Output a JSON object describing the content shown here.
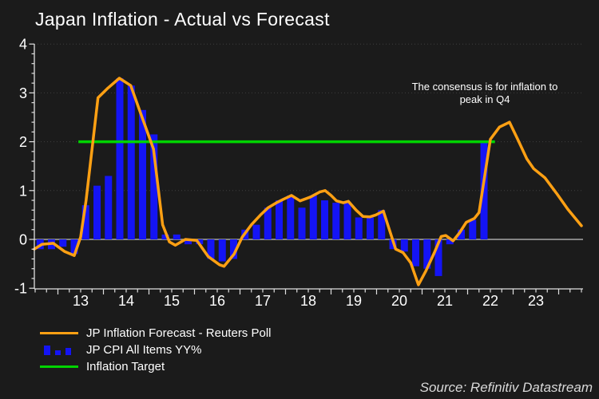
{
  "title": "Japan Inflation - Actual vs Forecast",
  "annotation": {
    "line1": "The consensus is for inflation to",
    "line2": "peak in Q4"
  },
  "source": "Source: Refinitiv Datastream",
  "legend": {
    "items": [
      {
        "label": "JP Inflation Forecast - Reuters Poll",
        "swatch": "line",
        "color": "#FFA013"
      },
      {
        "label": "JP CPI All Items YY%",
        "swatch": "bars",
        "color": "#1414F5"
      },
      {
        "label": "Inflation Target",
        "swatch": "line",
        "color": "#00D400"
      }
    ]
  },
  "colors": {
    "background": "#1b1b1b",
    "text": "#ffffff",
    "axis": "#e0e0e0",
    "gridline": "#3f3f3f",
    "zero_line": "#a8a8a8",
    "forecast_orange": "#FFA013",
    "cpi_blue": "#1414F5",
    "target_green": "#00D400",
    "source_text": "#d9d9d9"
  },
  "chart_data": {
    "type": "combo",
    "title": "Japan Inflation - Actual vs Forecast",
    "ylim": [
      -1,
      4
    ],
    "yticks": [
      -1,
      0,
      1,
      2,
      3,
      4
    ],
    "grid_y_dotted": [
      1,
      2,
      3,
      4
    ],
    "grid": "dotted horizontal at integers, solid gray zero line",
    "legend_position": "bottom-left",
    "x_year_labels": [
      "13",
      "14",
      "15",
      "16",
      "17",
      "18",
      "19",
      "20",
      "21",
      "22",
      "23"
    ],
    "x_range_years": [
      12.48,
      24.55
    ],
    "series": [
      {
        "name": "JP CPI All Items YY%",
        "type": "bar",
        "color": "#1414F5",
        "quarters": [
          "2012-Q3",
          "2012-Q4",
          "2013-Q1",
          "2013-Q2",
          "2013-Q3",
          "2013-Q4",
          "2014-Q1",
          "2014-Q2",
          "2014-Q3",
          "2014-Q4",
          "2015-Q1",
          "2015-Q2",
          "2015-Q3",
          "2015-Q4",
          "2016-Q1",
          "2016-Q2",
          "2016-Q3",
          "2016-Q4",
          "2017-Q1",
          "2017-Q2",
          "2017-Q3",
          "2017-Q4",
          "2018-Q1",
          "2018-Q2",
          "2018-Q3",
          "2018-Q4",
          "2019-Q1",
          "2019-Q2",
          "2019-Q3",
          "2019-Q4",
          "2020-Q1",
          "2020-Q2",
          "2020-Q3",
          "2020-Q4",
          "2021-Q1",
          "2021-Q2",
          "2021-Q3",
          "2021-Q4",
          "2022-Q1",
          "2022-Q2"
        ],
        "values": [
          -0.2,
          -0.2,
          -0.15,
          -0.3,
          0.7,
          1.1,
          1.3,
          3.3,
          3.15,
          2.65,
          2.15,
          0.1,
          0.1,
          -0.1,
          -0.1,
          -0.4,
          -0.45,
          -0.4,
          0.2,
          0.3,
          0.65,
          0.8,
          0.9,
          0.65,
          0.9,
          0.8,
          0.75,
          0.75,
          0.45,
          0.45,
          0.6,
          -0.2,
          -0.25,
          -0.55,
          -0.6,
          -0.75,
          -0.1,
          0.2,
          0.4,
          2.0
        ]
      },
      {
        "name": "JP Inflation Forecast - Reuters Poll",
        "type": "line",
        "color": "#FFA013",
        "points": [
          [
            12.48,
            -0.2
          ],
          [
            12.65,
            -0.1
          ],
          [
            12.9,
            -0.08
          ],
          [
            13.15,
            -0.25
          ],
          [
            13.36,
            -0.33
          ],
          [
            13.5,
            0.05
          ],
          [
            13.62,
            0.8
          ],
          [
            13.88,
            2.9
          ],
          [
            14.1,
            3.1
          ],
          [
            14.35,
            3.3
          ],
          [
            14.6,
            3.15
          ],
          [
            14.85,
            2.5
          ],
          [
            15.1,
            1.85
          ],
          [
            15.3,
            0.3
          ],
          [
            15.45,
            -0.05
          ],
          [
            15.58,
            -0.12
          ],
          [
            15.8,
            0.0
          ],
          [
            16.05,
            -0.02
          ],
          [
            16.3,
            -0.35
          ],
          [
            16.55,
            -0.52
          ],
          [
            16.65,
            -0.55
          ],
          [
            16.87,
            -0.3
          ],
          [
            17.05,
            0.05
          ],
          [
            17.25,
            0.3
          ],
          [
            17.45,
            0.5
          ],
          [
            17.62,
            0.65
          ],
          [
            17.8,
            0.75
          ],
          [
            17.95,
            0.82
          ],
          [
            18.13,
            0.9
          ],
          [
            18.32,
            0.79
          ],
          [
            18.55,
            0.87
          ],
          [
            18.75,
            0.97
          ],
          [
            18.87,
            1.0
          ],
          [
            19.0,
            0.9
          ],
          [
            19.12,
            0.79
          ],
          [
            19.27,
            0.75
          ],
          [
            19.38,
            0.78
          ],
          [
            19.55,
            0.6
          ],
          [
            19.7,
            0.47
          ],
          [
            19.85,
            0.46
          ],
          [
            19.98,
            0.5
          ],
          [
            20.15,
            0.58
          ],
          [
            20.42,
            -0.2
          ],
          [
            20.58,
            -0.27
          ],
          [
            20.75,
            -0.48
          ],
          [
            20.92,
            -0.93
          ],
          [
            21.08,
            -0.65
          ],
          [
            21.27,
            -0.27
          ],
          [
            21.42,
            0.06
          ],
          [
            21.52,
            0.08
          ],
          [
            21.68,
            -0.03
          ],
          [
            21.82,
            0.13
          ],
          [
            21.97,
            0.35
          ],
          [
            22.15,
            0.43
          ],
          [
            22.25,
            0.55
          ],
          [
            22.5,
            2.05
          ],
          [
            22.7,
            2.3
          ],
          [
            22.92,
            2.4
          ],
          [
            23.1,
            2.05
          ],
          [
            23.3,
            1.65
          ],
          [
            23.45,
            1.45
          ],
          [
            23.7,
            1.26
          ],
          [
            23.95,
            0.95
          ],
          [
            24.2,
            0.62
          ],
          [
            24.5,
            0.28
          ]
        ]
      },
      {
        "name": "Inflation Target",
        "type": "line",
        "color": "#00D400",
        "points": [
          [
            13.45,
            2.0
          ],
          [
            22.6,
            2.0
          ]
        ]
      }
    ]
  }
}
